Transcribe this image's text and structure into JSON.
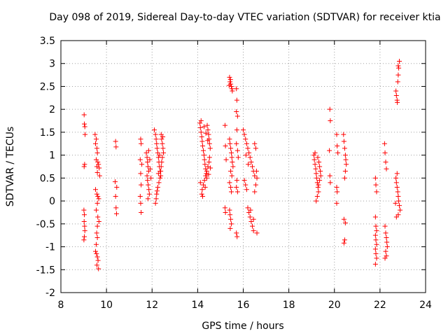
{
  "chart_data": {
    "type": "scatter",
    "title": "Day 098 of 2019, Sidereal Day-to-day VTEC variation (SDTVAR) for receiver ktia",
    "xlabel": "GPS time / hours",
    "ylabel": "SDTVAR / TECUs",
    "xlim": [
      8,
      24
    ],
    "ylim": [
      -2,
      3.5
    ],
    "xticks": [
      "8",
      "10",
      "12",
      "14",
      "16",
      "18",
      "20",
      "22",
      "24"
    ],
    "yticks": [
      "-2",
      "-1.5",
      "-1",
      "-0.5",
      "0",
      "0.5",
      "1",
      "1.5",
      "2",
      "2.5",
      "3",
      "3.5"
    ],
    "grid": true,
    "marker": "plus",
    "color": "#ff0000",
    "series": [
      {
        "name": "SDTVAR",
        "points": [
          [
            9.02,
            1.88
          ],
          [
            9.03,
            1.68
          ],
          [
            9.05,
            1.62
          ],
          [
            9.06,
            1.45
          ],
          [
            9.04,
            0.8
          ],
          [
            9.02,
            0.75
          ],
          [
            9.01,
            -0.2
          ],
          [
            9.03,
            -0.3
          ],
          [
            9.02,
            -0.45
          ],
          [
            9.04,
            -0.55
          ],
          [
            9.05,
            -0.65
          ],
          [
            9.03,
            -0.78
          ],
          [
            9.01,
            -0.85
          ],
          [
            9.5,
            1.45
          ],
          [
            9.55,
            1.35
          ],
          [
            9.52,
            1.25
          ],
          [
            9.58,
            1.15
          ],
          [
            9.6,
            1.05
          ],
          [
            9.55,
            0.9
          ],
          [
            9.62,
            0.85
          ],
          [
            9.65,
            0.8
          ],
          [
            9.58,
            0.75
          ],
          [
            9.68,
            0.72
          ],
          [
            9.6,
            0.62
          ],
          [
            9.7,
            0.55
          ],
          [
            9.52,
            0.25
          ],
          [
            9.58,
            0.15
          ],
          [
            9.62,
            0.1
          ],
          [
            9.66,
            0.05
          ],
          [
            9.6,
            -0.05
          ],
          [
            9.55,
            -0.2
          ],
          [
            9.62,
            -0.35
          ],
          [
            9.67,
            -0.45
          ],
          [
            9.6,
            -0.55
          ],
          [
            9.57,
            -0.7
          ],
          [
            9.6,
            -0.8
          ],
          [
            9.55,
            -0.95
          ],
          [
            9.52,
            -1.1
          ],
          [
            9.56,
            -1.15
          ],
          [
            9.6,
            -1.22
          ],
          [
            9.63,
            -1.3
          ],
          [
            9.58,
            -1.4
          ],
          [
            9.65,
            -1.48
          ],
          [
            10.4,
            1.3
          ],
          [
            10.42,
            1.18
          ],
          [
            10.38,
            0.42
          ],
          [
            10.45,
            0.3
          ],
          [
            10.4,
            0.1
          ],
          [
            10.42,
            -0.15
          ],
          [
            10.44,
            -0.28
          ],
          [
            11.5,
            1.35
          ],
          [
            11.52,
            1.25
          ],
          [
            11.48,
            0.9
          ],
          [
            11.55,
            0.8
          ],
          [
            11.5,
            0.6
          ],
          [
            11.52,
            0.35
          ],
          [
            11.48,
            0.1
          ],
          [
            11.5,
            -0.05
          ],
          [
            11.52,
            -0.25
          ],
          [
            11.75,
            1.05
          ],
          [
            11.78,
            0.95
          ],
          [
            11.8,
            0.85
          ],
          [
            11.82,
            0.75
          ],
          [
            11.85,
            0.65
          ],
          [
            11.78,
            0.55
          ],
          [
            11.8,
            0.45
          ],
          [
            11.83,
            0.35
          ],
          [
            11.86,
            0.25
          ],
          [
            11.88,
            0.15
          ],
          [
            11.82,
            0.05
          ],
          [
            11.85,
            1.1
          ],
          [
            11.9,
            0.9
          ],
          [
            11.92,
            0.7
          ],
          [
            11.95,
            0.5
          ],
          [
            12.1,
            1.55
          ],
          [
            12.15,
            1.45
          ],
          [
            12.18,
            1.35
          ],
          [
            12.2,
            1.25
          ],
          [
            12.22,
            1.15
          ],
          [
            12.25,
            1.05
          ],
          [
            12.28,
            0.95
          ],
          [
            12.3,
            0.85
          ],
          [
            12.32,
            0.75
          ],
          [
            12.35,
            0.65
          ],
          [
            12.38,
            0.55
          ],
          [
            12.4,
            1.45
          ],
          [
            12.42,
            1.35
          ],
          [
            12.45,
            1.25
          ],
          [
            12.48,
            1.15
          ],
          [
            12.5,
            1.05
          ],
          [
            12.45,
            0.95
          ],
          [
            12.42,
            0.85
          ],
          [
            12.4,
            0.75
          ],
          [
            12.38,
            0.65
          ],
          [
            12.35,
            0.5
          ],
          [
            12.3,
            0.4
          ],
          [
            12.25,
            0.3
          ],
          [
            12.2,
            0.15
          ],
          [
            12.18,
            0.05
          ],
          [
            12.15,
            -0.05
          ],
          [
            12.22,
            0.22
          ],
          [
            12.28,
            0.6
          ],
          [
            12.33,
            1.0
          ],
          [
            12.47,
            1.4
          ],
          [
            14.1,
            1.7
          ],
          [
            14.12,
            1.6
          ],
          [
            14.15,
            1.5
          ],
          [
            14.18,
            1.4
          ],
          [
            14.2,
            1.3
          ],
          [
            14.22,
            1.2
          ],
          [
            14.25,
            1.1
          ],
          [
            14.28,
            1.0
          ],
          [
            14.3,
            0.9
          ],
          [
            14.32,
            0.8
          ],
          [
            14.35,
            0.7
          ],
          [
            14.38,
            0.6
          ],
          [
            14.4,
            0.5
          ],
          [
            14.42,
            1.65
          ],
          [
            14.45,
            1.55
          ],
          [
            14.48,
            1.45
          ],
          [
            14.5,
            1.35
          ],
          [
            14.52,
            1.25
          ],
          [
            14.55,
            1.15
          ],
          [
            14.5,
            0.85
          ],
          [
            14.45,
            0.75
          ],
          [
            14.4,
            0.65
          ],
          [
            14.35,
            0.55
          ],
          [
            14.3,
            0.45
          ],
          [
            14.25,
            0.35
          ],
          [
            14.2,
            0.25
          ],
          [
            14.18,
            0.15
          ],
          [
            14.22,
            0.1
          ],
          [
            14.15,
            1.75
          ],
          [
            14.28,
            1.62
          ],
          [
            14.36,
            1.48
          ],
          [
            14.44,
            1.32
          ],
          [
            14.52,
            0.95
          ],
          [
            14.56,
            0.72
          ],
          [
            14.48,
            0.58
          ],
          [
            14.33,
            0.3
          ],
          [
            14.12,
            0.4
          ],
          [
            15.2,
            1.65
          ],
          [
            15.22,
            1.2
          ],
          [
            15.25,
            0.9
          ],
          [
            15.2,
            -0.15
          ],
          [
            15.22,
            -0.25
          ],
          [
            15.4,
            2.7
          ],
          [
            15.42,
            2.6
          ],
          [
            15.45,
            2.55
          ],
          [
            15.48,
            2.5
          ],
          [
            15.5,
            2.45
          ],
          [
            15.52,
            2.4
          ],
          [
            15.44,
            2.65
          ],
          [
            15.38,
            2.52
          ],
          [
            15.4,
            1.35
          ],
          [
            15.42,
            1.25
          ],
          [
            15.45,
            1.15
          ],
          [
            15.48,
            1.05
          ],
          [
            15.5,
            0.95
          ],
          [
            15.52,
            0.85
          ],
          [
            15.55,
            0.75
          ],
          [
            15.45,
            0.65
          ],
          [
            15.5,
            0.55
          ],
          [
            15.4,
            0.4
          ],
          [
            15.45,
            0.3
          ],
          [
            15.48,
            0.2
          ],
          [
            15.4,
            -0.2
          ],
          [
            15.42,
            -0.3
          ],
          [
            15.45,
            -0.4
          ],
          [
            15.48,
            -0.5
          ],
          [
            15.43,
            -0.6
          ],
          [
            15.7,
            2.45
          ],
          [
            15.72,
            2.2
          ],
          [
            15.7,
            1.95
          ],
          [
            15.75,
            1.85
          ],
          [
            15.72,
            1.55
          ],
          [
            15.7,
            1.25
          ],
          [
            15.75,
            1.1
          ],
          [
            15.78,
            0.95
          ],
          [
            15.72,
            0.45
          ],
          [
            15.7,
            0.3
          ],
          [
            15.75,
            0.2
          ],
          [
            15.7,
            -0.7
          ],
          [
            15.73,
            -0.78
          ],
          [
            16.0,
            1.55
          ],
          [
            16.05,
            1.45
          ],
          [
            16.1,
            1.35
          ],
          [
            16.15,
            1.25
          ],
          [
            16.2,
            1.15
          ],
          [
            16.25,
            1.05
          ],
          [
            16.3,
            0.95
          ],
          [
            16.35,
            0.85
          ],
          [
            16.4,
            0.75
          ],
          [
            16.45,
            0.65
          ],
          [
            16.5,
            0.55
          ],
          [
            16.05,
            0.45
          ],
          [
            16.1,
            0.35
          ],
          [
            16.15,
            0.25
          ],
          [
            16.2,
            -0.15
          ],
          [
            16.25,
            -0.25
          ],
          [
            16.3,
            -0.35
          ],
          [
            16.35,
            -0.45
          ],
          [
            16.4,
            -0.55
          ],
          [
            16.45,
            -0.65
          ],
          [
            16.5,
            1.25
          ],
          [
            16.55,
            1.15
          ],
          [
            16.58,
            0.65
          ],
          [
            16.6,
            0.5
          ],
          [
            16.55,
            0.35
          ],
          [
            16.5,
            0.2
          ],
          [
            16.45,
            -0.4
          ],
          [
            16.6,
            -0.7
          ],
          [
            16.12,
            1.0
          ],
          [
            16.22,
            0.8
          ],
          [
            16.32,
            -0.2
          ],
          [
            19.1,
            1.0
          ],
          [
            19.12,
            0.9
          ],
          [
            19.15,
            0.8
          ],
          [
            19.18,
            0.7
          ],
          [
            19.2,
            0.6
          ],
          [
            19.22,
            0.5
          ],
          [
            19.25,
            0.4
          ],
          [
            19.28,
            0.3
          ],
          [
            19.3,
            0.2
          ],
          [
            19.25,
            0.1
          ],
          [
            19.2,
            0.0
          ],
          [
            19.32,
            0.85
          ],
          [
            19.35,
            0.75
          ],
          [
            19.38,
            0.65
          ],
          [
            19.4,
            0.55
          ],
          [
            19.35,
            0.45
          ],
          [
            19.3,
            0.35
          ],
          [
            19.15,
            1.05
          ],
          [
            19.27,
            0.95
          ],
          [
            19.8,
            2.0
          ],
          [
            19.82,
            1.75
          ],
          [
            19.78,
            1.1
          ],
          [
            19.8,
            0.55
          ],
          [
            19.82,
            0.4
          ],
          [
            20.1,
            1.45
          ],
          [
            20.12,
            1.2
          ],
          [
            20.15,
            1.05
          ],
          [
            20.1,
            0.3
          ],
          [
            20.12,
            0.2
          ],
          [
            20.1,
            -0.05
          ],
          [
            20.4,
            1.45
          ],
          [
            20.42,
            1.3
          ],
          [
            20.45,
            1.15
          ],
          [
            20.48,
            1.0
          ],
          [
            20.5,
            0.9
          ],
          [
            20.52,
            0.8
          ],
          [
            20.48,
            0.65
          ],
          [
            20.45,
            0.5
          ],
          [
            20.42,
            -0.4
          ],
          [
            20.48,
            -0.48
          ],
          [
            20.45,
            -0.85
          ],
          [
            20.42,
            -0.92
          ],
          [
            21.8,
            0.5
          ],
          [
            21.82,
            0.35
          ],
          [
            21.85,
            0.2
          ],
          [
            21.8,
            -0.35
          ],
          [
            21.82,
            -0.55
          ],
          [
            21.85,
            -0.65
          ],
          [
            21.8,
            -0.75
          ],
          [
            21.82,
            -0.85
          ],
          [
            21.85,
            -0.95
          ],
          [
            21.8,
            -1.05
          ],
          [
            21.82,
            -1.15
          ],
          [
            21.85,
            -1.25
          ],
          [
            21.8,
            -1.38
          ],
          [
            22.2,
            1.25
          ],
          [
            22.22,
            1.05
          ],
          [
            22.25,
            0.85
          ],
          [
            22.28,
            0.7
          ],
          [
            22.22,
            -0.55
          ],
          [
            22.25,
            -0.7
          ],
          [
            22.28,
            -0.8
          ],
          [
            22.3,
            -0.9
          ],
          [
            22.32,
            -1.0
          ],
          [
            22.25,
            -1.1
          ],
          [
            22.28,
            -1.2
          ],
          [
            22.22,
            -1.25
          ],
          [
            22.7,
            2.4
          ],
          [
            22.72,
            2.3
          ],
          [
            22.75,
            2.2
          ],
          [
            22.78,
            2.6
          ],
          [
            22.8,
            2.75
          ],
          [
            22.82,
            2.9
          ],
          [
            22.85,
            3.05
          ],
          [
            22.8,
            2.95
          ],
          [
            22.76,
            2.15
          ],
          [
            22.7,
            0.5
          ],
          [
            22.72,
            0.4
          ],
          [
            22.75,
            0.3
          ],
          [
            22.78,
            0.2
          ],
          [
            22.8,
            0.1
          ],
          [
            22.82,
            0.0
          ],
          [
            22.85,
            -0.1
          ],
          [
            22.88,
            -0.2
          ],
          [
            22.8,
            -0.3
          ],
          [
            22.75,
            0.6
          ],
          [
            22.68,
            -0.05
          ],
          [
            22.72,
            -0.35
          ]
        ]
      }
    ]
  }
}
